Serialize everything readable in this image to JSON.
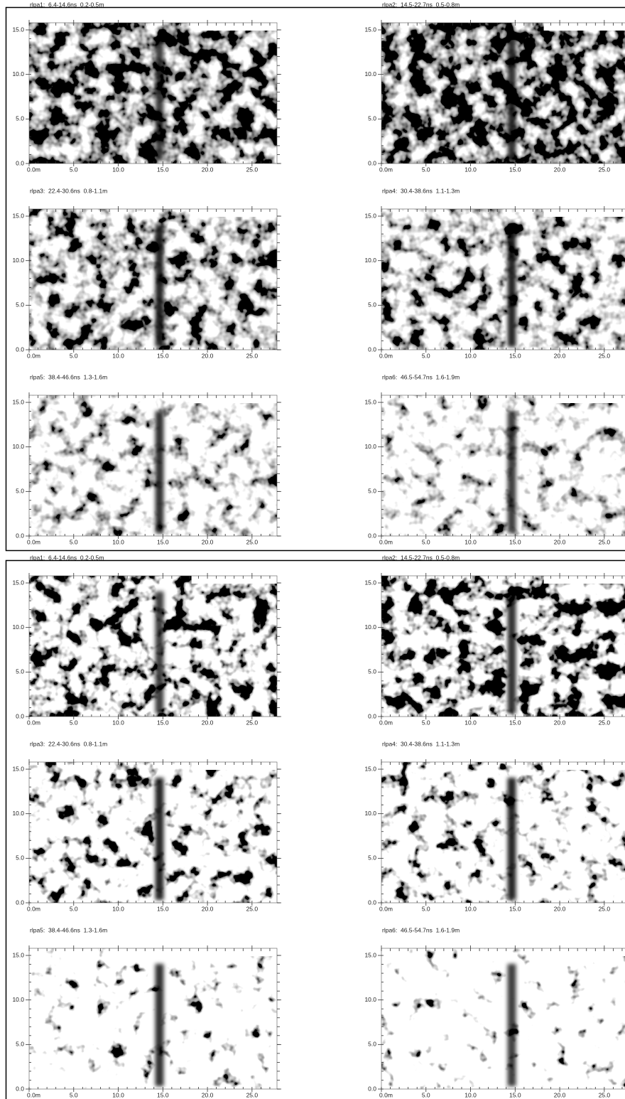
{
  "chart_data": [
    {
      "type": "heatmap",
      "title": "rlpa1:  6.4-14.6ns  0.2-0.5m",
      "xlim": [
        0,
        27.8
      ],
      "ylim": [
        0,
        15.8
      ],
      "xticks": [
        {
          "value": 0,
          "label": "0.0m"
        },
        {
          "value": 5,
          "label": "5.0"
        },
        {
          "value": 10,
          "label": "10.0"
        },
        {
          "value": 15,
          "label": "15.0"
        },
        {
          "value": 20,
          "label": "20.0"
        },
        {
          "value": 25,
          "label": "25.0"
        }
      ],
      "yticks": [
        {
          "value": 0,
          "label": "0.0"
        },
        {
          "value": 5,
          "label": "5.0"
        },
        {
          "value": 10,
          "label": "10.0"
        },
        {
          "value": 15,
          "label": "15.0"
        }
      ]
    },
    {
      "type": "heatmap",
      "title": "rlpa2:  14.5-22.7ns  0.5-0.8m",
      "xlim": [
        0,
        27.8
      ],
      "ylim": [
        0,
        15.8
      ],
      "xticks": [
        {
          "value": 0,
          "label": "0.0m"
        },
        {
          "value": 5,
          "label": "5.0"
        },
        {
          "value": 10,
          "label": "10.0"
        },
        {
          "value": 15,
          "label": "15.0"
        },
        {
          "value": 20,
          "label": "20.0"
        },
        {
          "value": 25,
          "label": "25.0"
        }
      ],
      "yticks": [
        {
          "value": 0,
          "label": "0.0"
        },
        {
          "value": 5,
          "label": "5.0"
        },
        {
          "value": 10,
          "label": "10.0"
        },
        {
          "value": 15,
          "label": "15.0"
        }
      ]
    },
    {
      "type": "heatmap",
      "title": "rlpa3:  22.4-30.6ns  0.8-1.1m",
      "xlim": [
        0,
        27.8
      ],
      "ylim": [
        0,
        15.8
      ],
      "xticks": [
        {
          "value": 0,
          "label": "0.0m"
        },
        {
          "value": 5,
          "label": "5.0"
        },
        {
          "value": 10,
          "label": "10.0"
        },
        {
          "value": 15,
          "label": "15.0"
        },
        {
          "value": 20,
          "label": "20.0"
        },
        {
          "value": 25,
          "label": "25.0"
        }
      ],
      "yticks": [
        {
          "value": 0,
          "label": "0.0"
        },
        {
          "value": 5,
          "label": "5.0"
        },
        {
          "value": 10,
          "label": "10.0"
        },
        {
          "value": 15,
          "label": "15.0"
        }
      ]
    },
    {
      "type": "heatmap",
      "title": "rlpa4:  30.4-38.6ns  1.1-1.3m",
      "xlim": [
        0,
        27.8
      ],
      "ylim": [
        0,
        15.8
      ],
      "xticks": [
        {
          "value": 0,
          "label": "0.0m"
        },
        {
          "value": 5,
          "label": "5.0"
        },
        {
          "value": 10,
          "label": "10.0"
        },
        {
          "value": 15,
          "label": "15.0"
        },
        {
          "value": 20,
          "label": "20.0"
        },
        {
          "value": 25,
          "label": "25.0"
        }
      ],
      "yticks": [
        {
          "value": 0,
          "label": "0.0"
        },
        {
          "value": 5,
          "label": "5.0"
        },
        {
          "value": 10,
          "label": "10.0"
        },
        {
          "value": 15,
          "label": "15.0"
        }
      ]
    },
    {
      "type": "heatmap",
      "title": "rlpa5:  38.4-46.6ns  1.3-1.6m",
      "xlim": [
        0,
        27.8
      ],
      "ylim": [
        0,
        15.8
      ],
      "xticks": [
        {
          "value": 0,
          "label": "0.0m"
        },
        {
          "value": 5,
          "label": "5.0"
        },
        {
          "value": 10,
          "label": "10.0"
        },
        {
          "value": 15,
          "label": "15.0"
        },
        {
          "value": 20,
          "label": "20.0"
        },
        {
          "value": 25,
          "label": "25.0"
        }
      ],
      "yticks": [
        {
          "value": 0,
          "label": "0.0"
        },
        {
          "value": 5,
          "label": "5.0"
        },
        {
          "value": 10,
          "label": "10.0"
        },
        {
          "value": 15,
          "label": "15.0"
        }
      ]
    },
    {
      "type": "heatmap",
      "title": "rlpa6:  46.5-54.7ns  1.6-1.9m",
      "xlim": [
        0,
        27.8
      ],
      "ylim": [
        0,
        15.8
      ],
      "xticks": [
        {
          "value": 0,
          "label": "0.0m"
        },
        {
          "value": 5,
          "label": "5.0"
        },
        {
          "value": 10,
          "label": "10.0"
        },
        {
          "value": 15,
          "label": "15.0"
        },
        {
          "value": 20,
          "label": "20.0"
        },
        {
          "value": 25,
          "label": "25.0"
        }
      ],
      "yticks": [
        {
          "value": 0,
          "label": "0.0"
        },
        {
          "value": 5,
          "label": "5.0"
        },
        {
          "value": 10,
          "label": "10.0"
        },
        {
          "value": 15,
          "label": "15.0"
        }
      ]
    },
    {
      "type": "heatmap",
      "title": "rlpa1:  6.4-14.6ns  0.2-0.5m",
      "xlim": [
        0,
        27.8
      ],
      "ylim": [
        0,
        15.8
      ],
      "xticks": [
        {
          "value": 0,
          "label": "0.0m"
        },
        {
          "value": 5,
          "label": "5.0"
        },
        {
          "value": 10,
          "label": "10.0"
        },
        {
          "value": 15,
          "label": "15.0"
        },
        {
          "value": 20,
          "label": "20.0"
        },
        {
          "value": 25,
          "label": "25.0"
        }
      ],
      "yticks": [
        {
          "value": 0,
          "label": "0.0"
        },
        {
          "value": 5,
          "label": "5.0"
        },
        {
          "value": 10,
          "label": "10.0"
        },
        {
          "value": 15,
          "label": "15.0"
        }
      ]
    },
    {
      "type": "heatmap",
      "title": "rlpa2:  14.5-22.7ns  0.5-0.8m",
      "xlim": [
        0,
        27.8
      ],
      "ylim": [
        0,
        15.8
      ],
      "xticks": [
        {
          "value": 0,
          "label": "0.0m"
        },
        {
          "value": 5,
          "label": "5.0"
        },
        {
          "value": 10,
          "label": "10.0"
        },
        {
          "value": 15,
          "label": "15.0"
        },
        {
          "value": 20,
          "label": "20.0"
        },
        {
          "value": 25,
          "label": "25.0"
        }
      ],
      "yticks": [
        {
          "value": 0,
          "label": "0.0"
        },
        {
          "value": 5,
          "label": "5.0"
        },
        {
          "value": 10,
          "label": "10.0"
        },
        {
          "value": 15,
          "label": "15.0"
        }
      ]
    },
    {
      "type": "heatmap",
      "title": "rlpa3:  22.4-30.6ns  0.8-1.1m",
      "xlim": [
        0,
        27.8
      ],
      "ylim": [
        0,
        15.8
      ],
      "xticks": [
        {
          "value": 0,
          "label": "0.0m"
        },
        {
          "value": 5,
          "label": "5.0"
        },
        {
          "value": 10,
          "label": "10.0"
        },
        {
          "value": 15,
          "label": "15.0"
        },
        {
          "value": 20,
          "label": "20.0"
        },
        {
          "value": 25,
          "label": "25.0"
        }
      ],
      "yticks": [
        {
          "value": 0,
          "label": "0.0"
        },
        {
          "value": 5,
          "label": "5.0"
        },
        {
          "value": 10,
          "label": "10.0"
        },
        {
          "value": 15,
          "label": "15.0"
        }
      ]
    },
    {
      "type": "heatmap",
      "title": "rlpa4:  30.4-38.6ns  1.1-1.3m",
      "xlim": [
        0,
        27.8
      ],
      "ylim": [
        0,
        15.8
      ],
      "xticks": [
        {
          "value": 0,
          "label": "0.0m"
        },
        {
          "value": 5,
          "label": "5.0"
        },
        {
          "value": 10,
          "label": "10.0"
        },
        {
          "value": 15,
          "label": "15.0"
        },
        {
          "value": 20,
          "label": "20.0"
        },
        {
          "value": 25,
          "label": "25.0"
        }
      ],
      "yticks": [
        {
          "value": 0,
          "label": "0.0"
        },
        {
          "value": 5,
          "label": "5.0"
        },
        {
          "value": 10,
          "label": "10.0"
        },
        {
          "value": 15,
          "label": "15.0"
        }
      ]
    },
    {
      "type": "heatmap",
      "title": "rlpa5:  38.4-46.6ns  1.3-1.6m",
      "xlim": [
        0,
        27.8
      ],
      "ylim": [
        0,
        15.8
      ],
      "xticks": [
        {
          "value": 0,
          "label": "0.0m"
        },
        {
          "value": 5,
          "label": "5.0"
        },
        {
          "value": 10,
          "label": "10.0"
        },
        {
          "value": 15,
          "label": "15.0"
        },
        {
          "value": 20,
          "label": "20.0"
        },
        {
          "value": 25,
          "label": "25.0"
        }
      ],
      "yticks": [
        {
          "value": 0,
          "label": "0.0"
        },
        {
          "value": 5,
          "label": "5.0"
        },
        {
          "value": 10,
          "label": "10.0"
        },
        {
          "value": 15,
          "label": "15.0"
        }
      ]
    },
    {
      "type": "heatmap",
      "title": "rlpa6:  46.5-54.7ns  1.6-1.9m",
      "xlim": [
        0,
        27.8
      ],
      "ylim": [
        0,
        15.8
      ],
      "xticks": [
        {
          "value": 0,
          "label": "0.0m"
        },
        {
          "value": 5,
          "label": "5.0"
        },
        {
          "value": 10,
          "label": "10.0"
        },
        {
          "value": 15,
          "label": "15.0"
        },
        {
          "value": 20,
          "label": "20.0"
        },
        {
          "value": 25,
          "label": "25.0"
        }
      ],
      "yticks": [
        {
          "value": 0,
          "label": "0.0"
        },
        {
          "value": 5,
          "label": "5.0"
        },
        {
          "value": 10,
          "label": "10.0"
        },
        {
          "value": 15,
          "label": "15.0"
        }
      ]
    }
  ]
}
